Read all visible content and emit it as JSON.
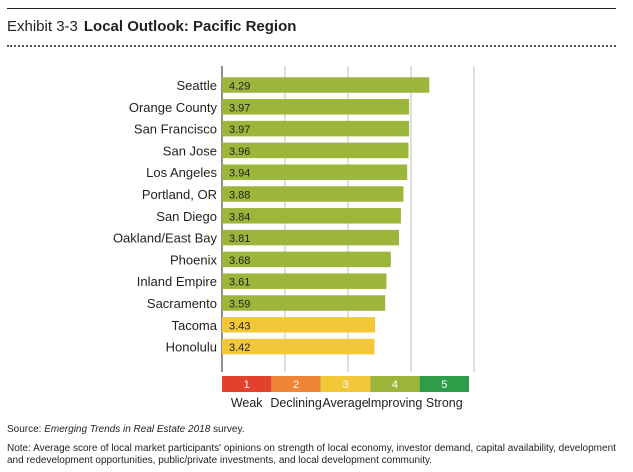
{
  "header": {
    "exhibit_label": "Exhibit 3-3",
    "title": "Local Outlook: Pacific Region"
  },
  "chart_data": {
    "type": "bar",
    "orientation": "horizontal",
    "title": "Local Outlook: Pacific Region",
    "categories": [
      "Seattle",
      "Orange County",
      "San Francisco",
      "San Jose",
      "Los Angeles",
      "Portland, OR",
      "San Diego",
      "Oakland/East Bay",
      "Phoenix",
      "Inland Empire",
      "Sacramento",
      "Tacoma",
      "Honolulu"
    ],
    "values": [
      4.29,
      3.97,
      3.97,
      3.96,
      3.94,
      3.88,
      3.84,
      3.81,
      3.68,
      3.61,
      3.59,
      3.43,
      3.42
    ],
    "value_labels": [
      "4.29",
      "3.97",
      "3.97",
      "3.96",
      "3.94",
      "3.88",
      "3.84",
      "3.81",
      "3.68",
      "3.61",
      "3.59",
      "3.43",
      "3.42"
    ],
    "xlim": [
      1,
      5
    ],
    "grid": true,
    "bar_colors": {
      "improving": "#9bb63a",
      "average": "#f2c738",
      "bar_threshold": 3.5
    },
    "scale": [
      {
        "value": "1",
        "label": "Weak",
        "color": "#e2412d"
      },
      {
        "value": "2",
        "label": "Declining",
        "color": "#ef8535"
      },
      {
        "value": "3",
        "label": "Average",
        "color": "#f2c738"
      },
      {
        "value": "4",
        "label": "Improving",
        "color": "#9bb63a"
      },
      {
        "value": "5",
        "label": "Strong",
        "color": "#2e9d4a"
      }
    ]
  },
  "footer": {
    "source_prefix": "Source: ",
    "source_title": "Emerging Trends in Real Estate 2018",
    "source_suffix": " survey.",
    "note": "Note: Average score of local market participants' opinions on strength of local economy, investor demand, capital availability, development and redevelopment opportunities, public/private investments, and local development community."
  }
}
